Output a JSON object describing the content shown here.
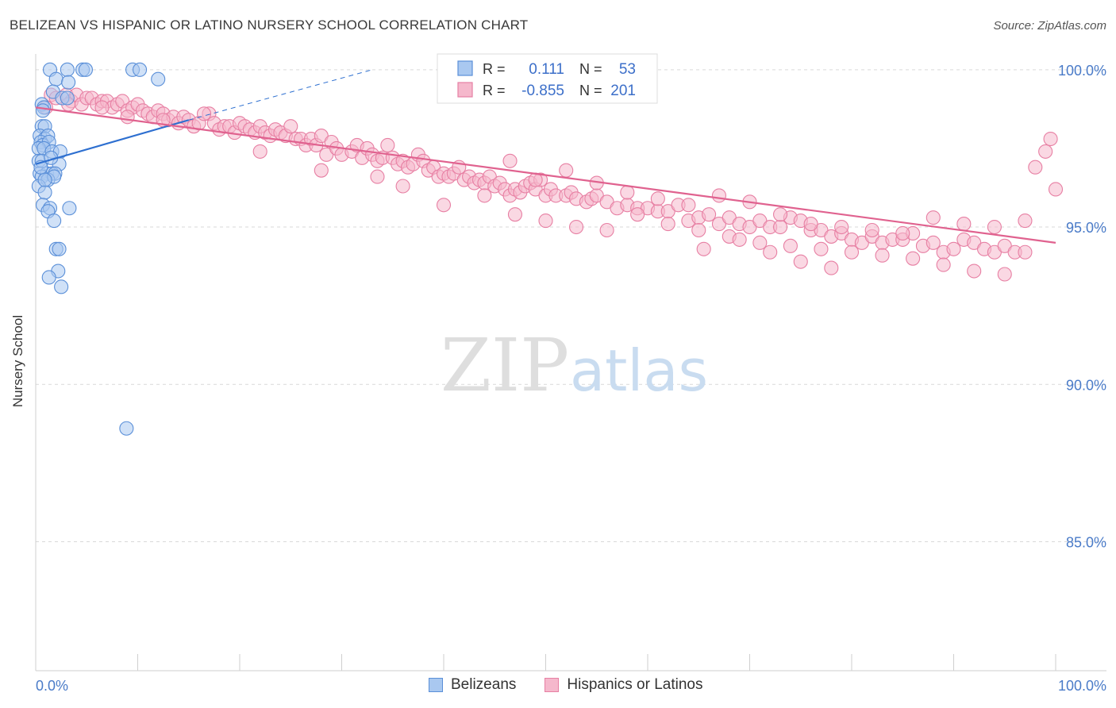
{
  "title": "BELIZEAN VS HISPANIC OR LATINO NURSERY SCHOOL CORRELATION CHART",
  "source": "Source: ZipAtlas.com",
  "watermark": {
    "zip": "ZIP",
    "atlas": "atlas"
  },
  "colors": {
    "blue_fill": "#a9c8f0",
    "blue_stroke": "#5a8fd8",
    "blue_line": "#2d6fd0",
    "pink_fill": "#f5b8cc",
    "pink_stroke": "#e77fa3",
    "pink_line": "#e0628f",
    "axis_text": "#4a7bc8",
    "grid": "#d9d9d9"
  },
  "chart_data": {
    "type": "scatter",
    "title": "BELIZEAN VS HISPANIC OR LATINO NURSERY SCHOOL CORRELATION CHART",
    "xlabel": "",
    "ylabel": "Nursery School",
    "xlim": [
      0,
      100
    ],
    "ylim": [
      80.9,
      100.5
    ],
    "x_tick_labels": [
      "0.0%",
      "100.0%"
    ],
    "y_ticks": [
      85,
      90,
      95,
      100
    ],
    "y_tick_labels": [
      "85.0%",
      "90.0%",
      "95.0%",
      "100.0%"
    ],
    "stats_legend": [
      {
        "series": "Belizeans",
        "r_label": "R =",
        "r_value": "0.111",
        "n_label": "N =",
        "n_value": "53"
      },
      {
        "series": "Hispanics or Latinos",
        "r_label": "R =",
        "r_value": "-0.855",
        "n_label": "N =",
        "n_value": "201"
      }
    ],
    "series": [
      {
        "name": "Belizeans",
        "trend": {
          "x0": 0,
          "y0": 97.0,
          "x1": 15,
          "y1": 98.4,
          "dash_to_x": 33,
          "dash_to_y": 100.0
        },
        "points": [
          [
            1.4,
            100.0
          ],
          [
            3.1,
            100.0
          ],
          [
            4.6,
            100.0
          ],
          [
            4.9,
            100.0
          ],
          [
            9.5,
            100.0
          ],
          [
            10.2,
            100.0
          ],
          [
            2.0,
            99.7
          ],
          [
            3.2,
            99.6
          ],
          [
            12.0,
            99.7
          ],
          [
            1.7,
            99.3
          ],
          [
            2.6,
            99.1
          ],
          [
            3.1,
            99.1
          ],
          [
            0.6,
            98.9
          ],
          [
            0.8,
            98.8
          ],
          [
            0.6,
            98.2
          ],
          [
            0.9,
            98.2
          ],
          [
            0.4,
            97.9
          ],
          [
            0.9,
            97.8
          ],
          [
            1.2,
            97.9
          ],
          [
            0.5,
            97.7
          ],
          [
            0.7,
            97.6
          ],
          [
            1.3,
            97.7
          ],
          [
            0.3,
            97.5
          ],
          [
            0.8,
            97.5
          ],
          [
            1.6,
            97.4
          ],
          [
            2.4,
            97.4
          ],
          [
            0.3,
            97.1
          ],
          [
            0.6,
            97.1
          ],
          [
            2.3,
            97.0
          ],
          [
            0.4,
            96.7
          ],
          [
            1.1,
            96.7
          ],
          [
            1.6,
            96.7
          ],
          [
            1.9,
            96.7
          ],
          [
            0.6,
            96.6
          ],
          [
            1.2,
            96.5
          ],
          [
            1.8,
            96.6
          ],
          [
            0.3,
            96.3
          ],
          [
            0.9,
            96.1
          ],
          [
            0.7,
            95.7
          ],
          [
            1.4,
            95.6
          ],
          [
            3.3,
            95.6
          ],
          [
            1.2,
            95.5
          ],
          [
            1.8,
            95.2
          ],
          [
            2.0,
            94.3
          ],
          [
            2.3,
            94.3
          ],
          [
            2.2,
            93.6
          ],
          [
            1.3,
            93.4
          ],
          [
            2.5,
            93.1
          ],
          [
            0.9,
            96.5
          ],
          [
            1.5,
            97.2
          ],
          [
            0.5,
            96.9
          ],
          [
            0.7,
            98.7
          ],
          [
            8.9,
            88.6
          ]
        ]
      },
      {
        "name": "Hispanics or Latinos",
        "trend": {
          "x0": 0,
          "y0": 98.8,
          "x1": 100,
          "y1": 94.5
        },
        "points": [
          [
            1,
            98.8
          ],
          [
            1.5,
            99.2
          ],
          [
            2,
            99.1
          ],
          [
            3,
            99.2
          ],
          [
            3.5,
            99.0
          ],
          [
            4,
            99.2
          ],
          [
            4.5,
            98.9
          ],
          [
            5,
            99.1
          ],
          [
            5.5,
            99.1
          ],
          [
            6,
            98.9
          ],
          [
            6.5,
            99.0
          ],
          [
            7,
            99.0
          ],
          [
            7.5,
            98.8
          ],
          [
            8,
            98.9
          ],
          [
            8.5,
            99.0
          ],
          [
            9,
            98.7
          ],
          [
            9.5,
            98.8
          ],
          [
            10,
            98.9
          ],
          [
            10.5,
            98.7
          ],
          [
            11,
            98.6
          ],
          [
            11.5,
            98.5
          ],
          [
            12,
            98.7
          ],
          [
            12.5,
            98.6
          ],
          [
            13,
            98.4
          ],
          [
            13.5,
            98.5
          ],
          [
            14,
            98.3
          ],
          [
            14.5,
            98.5
          ],
          [
            15,
            98.4
          ],
          [
            15.5,
            98.2
          ],
          [
            16,
            98.3
          ],
          [
            17,
            98.6
          ],
          [
            17.5,
            98.3
          ],
          [
            18,
            98.1
          ],
          [
            18.5,
            98.2
          ],
          [
            19,
            98.2
          ],
          [
            19.5,
            98.0
          ],
          [
            20,
            98.3
          ],
          [
            20.5,
            98.2
          ],
          [
            21,
            98.1
          ],
          [
            21.5,
            98.0
          ],
          [
            22,
            98.2
          ],
          [
            22.5,
            98.0
          ],
          [
            23,
            97.9
          ],
          [
            23.5,
            98.1
          ],
          [
            24,
            98.0
          ],
          [
            24.5,
            97.9
          ],
          [
            25,
            98.2
          ],
          [
            25.5,
            97.8
          ],
          [
            26,
            97.8
          ],
          [
            26.5,
            97.6
          ],
          [
            27,
            97.8
          ],
          [
            27.5,
            97.6
          ],
          [
            28,
            97.9
          ],
          [
            28.5,
            97.3
          ],
          [
            29,
            97.7
          ],
          [
            29.5,
            97.5
          ],
          [
            30,
            97.3
          ],
          [
            31,
            97.4
          ],
          [
            31.5,
            97.6
          ],
          [
            32,
            97.2
          ],
          [
            32.5,
            97.5
          ],
          [
            33,
            97.3
          ],
          [
            33.5,
            97.1
          ],
          [
            34,
            97.2
          ],
          [
            34.5,
            97.6
          ],
          [
            35,
            97.2
          ],
          [
            35.5,
            97.0
          ],
          [
            36,
            97.1
          ],
          [
            36.5,
            96.9
          ],
          [
            37,
            97.0
          ],
          [
            37.5,
            97.3
          ],
          [
            38,
            97.1
          ],
          [
            38.5,
            96.8
          ],
          [
            39,
            96.9
          ],
          [
            39.5,
            96.6
          ],
          [
            40,
            96.7
          ],
          [
            40.5,
            96.6
          ],
          [
            41,
            96.7
          ],
          [
            41.5,
            96.9
          ],
          [
            42,
            96.5
          ],
          [
            42.5,
            96.6
          ],
          [
            43,
            96.4
          ],
          [
            43.5,
            96.5
          ],
          [
            44,
            96.4
          ],
          [
            44.5,
            96.6
          ],
          [
            45,
            96.3
          ],
          [
            45.5,
            96.4
          ],
          [
            46,
            96.2
          ],
          [
            46.5,
            96.0
          ],
          [
            47,
            96.2
          ],
          [
            47.5,
            96.1
          ],
          [
            48,
            96.3
          ],
          [
            48.5,
            96.4
          ],
          [
            49,
            96.2
          ],
          [
            49.5,
            96.5
          ],
          [
            50,
            96.0
          ],
          [
            50.5,
            96.2
          ],
          [
            51,
            96.0
          ],
          [
            52,
            96.0
          ],
          [
            52.5,
            96.1
          ],
          [
            53,
            95.9
          ],
          [
            54,
            95.8
          ],
          [
            54.5,
            95.9
          ],
          [
            55,
            96.0
          ],
          [
            56,
            95.8
          ],
          [
            57,
            95.6
          ],
          [
            58,
            95.7
          ],
          [
            59,
            95.6
          ],
          [
            60,
            95.6
          ],
          [
            61,
            95.5
          ],
          [
            62,
            95.5
          ],
          [
            63,
            95.7
          ],
          [
            64,
            95.2
          ],
          [
            65,
            95.3
          ],
          [
            66,
            95.4
          ],
          [
            67,
            95.1
          ],
          [
            68,
            95.3
          ],
          [
            69,
            95.1
          ],
          [
            70,
            95.0
          ],
          [
            71,
            95.2
          ],
          [
            72,
            95.0
          ],
          [
            73,
            95.0
          ],
          [
            74,
            95.3
          ],
          [
            75,
            95.2
          ],
          [
            76,
            94.9
          ],
          [
            77,
            94.9
          ],
          [
            78,
            94.7
          ],
          [
            79,
            94.8
          ],
          [
            80,
            94.6
          ],
          [
            81,
            94.5
          ],
          [
            82,
            94.7
          ],
          [
            83,
            94.5
          ],
          [
            84,
            94.6
          ],
          [
            85,
            94.6
          ],
          [
            86,
            94.8
          ],
          [
            87,
            94.4
          ],
          [
            88,
            94.5
          ],
          [
            89,
            94.2
          ],
          [
            90,
            94.3
          ],
          [
            91,
            94.6
          ],
          [
            92,
            94.5
          ],
          [
            93,
            94.3
          ],
          [
            94,
            94.2
          ],
          [
            95,
            94.4
          ],
          [
            96,
            94.2
          ],
          [
            97,
            94.2
          ],
          [
            3.2,
            98.9
          ],
          [
            6.5,
            98.8
          ],
          [
            9,
            98.5
          ],
          [
            12.5,
            98.4
          ],
          [
            16.5,
            98.6
          ],
          [
            22,
            97.4
          ],
          [
            28,
            96.8
          ],
          [
            33.5,
            96.6
          ],
          [
            36,
            96.3
          ],
          [
            40,
            95.7
          ],
          [
            44,
            96.0
          ],
          [
            46.5,
            97.1
          ],
          [
            49,
            96.5
          ],
          [
            52,
            96.8
          ],
          [
            55,
            96.4
          ],
          [
            58,
            96.1
          ],
          [
            61,
            95.9
          ],
          [
            64,
            95.7
          ],
          [
            67,
            96.0
          ],
          [
            70,
            95.8
          ],
          [
            73,
            95.4
          ],
          [
            76,
            95.1
          ],
          [
            79,
            95.0
          ],
          [
            82,
            94.9
          ],
          [
            85,
            94.8
          ],
          [
            88,
            95.3
          ],
          [
            91,
            95.1
          ],
          [
            94,
            95.0
          ],
          [
            97,
            95.2
          ],
          [
            98,
            96.9
          ],
          [
            99,
            97.4
          ],
          [
            100,
            96.2
          ],
          [
            99.5,
            97.8
          ],
          [
            47,
            95.4
          ],
          [
            50,
            95.2
          ],
          [
            53,
            95.0
          ],
          [
            56,
            94.9
          ],
          [
            59,
            95.4
          ],
          [
            62,
            95.1
          ],
          [
            65,
            94.9
          ],
          [
            68,
            94.7
          ],
          [
            71,
            94.5
          ],
          [
            74,
            94.4
          ],
          [
            77,
            94.3
          ],
          [
            80,
            94.2
          ],
          [
            83,
            94.1
          ],
          [
            86,
            94.0
          ],
          [
            89,
            93.8
          ],
          [
            92,
            93.6
          ],
          [
            95,
            93.5
          ],
          [
            65.5,
            94.3
          ],
          [
            69,
            94.6
          ],
          [
            72,
            94.2
          ],
          [
            75,
            93.9
          ],
          [
            78,
            93.7
          ]
        ]
      }
    ]
  },
  "legend": {
    "blue_label": "Belizeans",
    "pink_label": "Hispanics or Latinos"
  }
}
